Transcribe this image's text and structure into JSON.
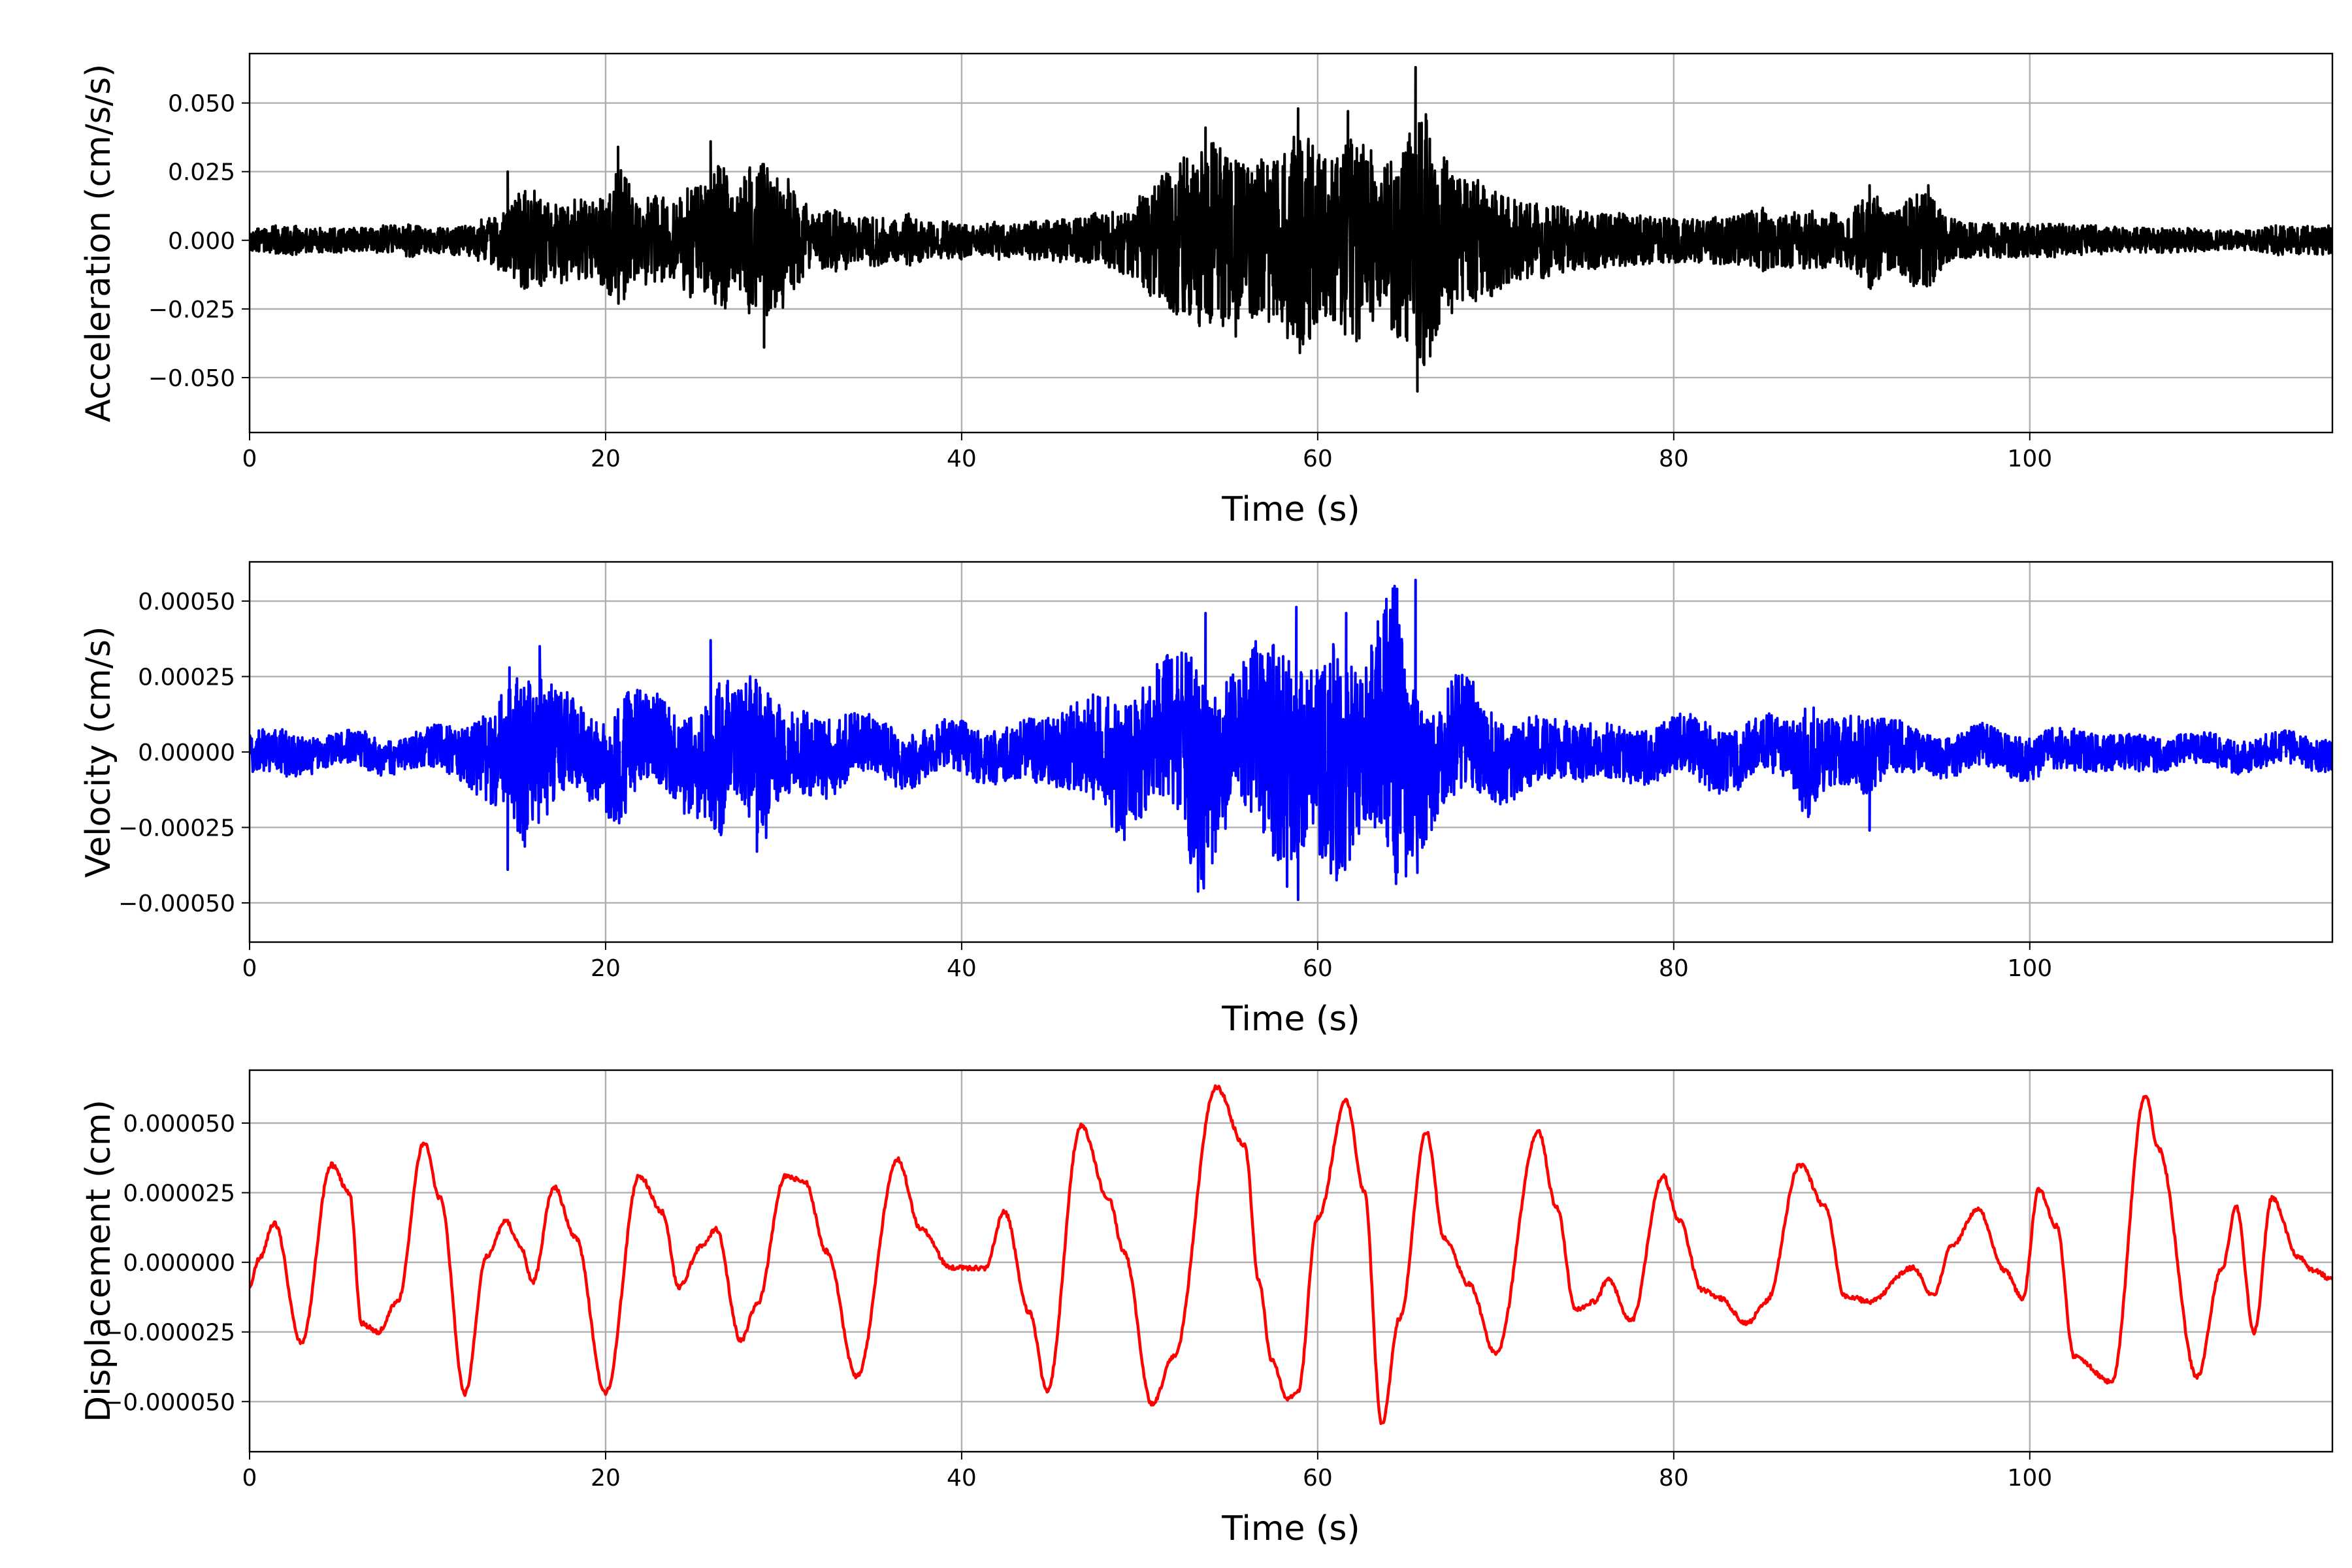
{
  "chart_data": [
    {
      "type": "line",
      "xlabel": "Time (s)",
      "ylabel": "Acceleration (cm/s/s)",
      "xlim": [
        0,
        117
      ],
      "ylim": [
        -0.07,
        0.068
      ],
      "x_ticks": [
        0,
        20,
        40,
        60,
        80,
        100
      ],
      "x_tick_labels": [
        "0",
        "20",
        "40",
        "60",
        "80",
        "100"
      ],
      "y_ticks": [
        0.05,
        0.025,
        0.0,
        -0.025,
        -0.05
      ],
      "y_tick_labels": [
        "0.050",
        "0.025",
        "0.000",
        "−0.025",
        "−0.050"
      ],
      "grid": true,
      "series": [
        {
          "color": "#000000",
          "sample_interval_s": 0.5,
          "peaks": [
            {
              "t": 14.5,
              "v": 0.025
            },
            {
              "t": 20.7,
              "v": 0.034
            },
            {
              "t": 25.9,
              "v": 0.036
            },
            {
              "t": 28.9,
              "v": -0.039
            },
            {
              "t": 53.7,
              "v": 0.041
            },
            {
              "t": 55.4,
              "v": -0.035
            },
            {
              "t": 58.9,
              "v": 0.048
            },
            {
              "t": 59.0,
              "v": -0.041
            },
            {
              "t": 61.7,
              "v": 0.047
            },
            {
              "t": 65.5,
              "v": 0.063
            },
            {
              "t": 65.6,
              "v": -0.055
            },
            {
              "t": 91.0,
              "v": 0.02
            },
            {
              "t": 94.3,
              "v": 0.02
            }
          ],
          "envelope": [
            0.004,
            0.005,
            0.005,
            0.006,
            0.006,
            0.006,
            0.005,
            0.005,
            0.005,
            0.005,
            0.005,
            0.005,
            0.005,
            0.005,
            0.005,
            0.006,
            0.006,
            0.006,
            0.007,
            0.006,
            0.005,
            0.006,
            0.005,
            0.006,
            0.006,
            0.007,
            0.009,
            0.01,
            0.012,
            0.013,
            0.019,
            0.021,
            0.02,
            0.019,
            0.014,
            0.018,
            0.016,
            0.017,
            0.015,
            0.016,
            0.02,
            0.028,
            0.03,
            0.019,
            0.017,
            0.02,
            0.017,
            0.018,
            0.014,
            0.023,
            0.025,
            0.021,
            0.027,
            0.032,
            0.022,
            0.02,
            0.03,
            0.028,
            0.033,
            0.029,
            0.028,
            0.023,
            0.016,
            0.014,
            0.011,
            0.012,
            0.013,
            0.012,
            0.009,
            0.009,
            0.011,
            0.01,
            0.009,
            0.008,
            0.011,
            0.009,
            0.008,
            0.007,
            0.008,
            0.007,
            0.008,
            0.006,
            0.006,
            0.007,
            0.008,
            0.007,
            0.007,
            0.007,
            0.008,
            0.008,
            0.008,
            0.009,
            0.008,
            0.009,
            0.009,
            0.011,
            0.01,
            0.012,
            0.014,
            0.014,
            0.02,
            0.022,
            0.024,
            0.028,
            0.03,
            0.034,
            0.032,
            0.036,
            0.04,
            0.038,
            0.034,
            0.034,
            0.03,
            0.032,
            0.034,
            0.036,
            0.038,
            0.042,
            0.045,
            0.042,
            0.036,
            0.033,
            0.035,
            0.039,
            0.042,
            0.04,
            0.037,
            0.03,
            0.036,
            0.04,
            0.044,
            0.048,
            0.052,
            0.046,
            0.037,
            0.03,
            0.026,
            0.024,
            0.025,
            0.024,
            0.023,
            0.02,
            0.017,
            0.016,
            0.016,
            0.016,
            0.015,
            0.014,
            0.013,
            0.012,
            0.012,
            0.012,
            0.012,
            0.011,
            0.011,
            0.01,
            0.01,
            0.01,
            0.009,
            0.009,
            0.009,
            0.009,
            0.009,
            0.009,
            0.009,
            0.01,
            0.01,
            0.01,
            0.011,
            0.013,
            0.014,
            0.012,
            0.011,
            0.012,
            0.012,
            0.012,
            0.012,
            0.011,
            0.011,
            0.011,
            0.012,
            0.016,
            0.02,
            0.018,
            0.013,
            0.012,
            0.015,
            0.019,
            0.02,
            0.018,
            0.012,
            0.009,
            0.008,
            0.007,
            0.007,
            0.007,
            0.007,
            0.007,
            0.007,
            0.007,
            0.007,
            0.007,
            0.007,
            0.007,
            0.007,
            0.006,
            0.006,
            0.006,
            0.006,
            0.006,
            0.005,
            0.005,
            0.005,
            0.005,
            0.005,
            0.005,
            0.005,
            0.005,
            0.005,
            0.005,
            0.004,
            0.004,
            0.004,
            0.004,
            0.004,
            0.004,
            0.005,
            0.006,
            0.006
          ]
        }
      ]
    },
    {
      "type": "line",
      "xlabel": "Time (s)",
      "ylabel": "Velocity (cm/s)",
      "xlim": [
        0,
        117
      ],
      "ylim": [
        -0.00063,
        0.00063
      ],
      "x_ticks": [
        0,
        20,
        40,
        60,
        80,
        100
      ],
      "x_tick_labels": [
        "0",
        "20",
        "40",
        "60",
        "80",
        "100"
      ],
      "y_ticks": [
        0.0005,
        0.00025,
        0.0,
        -0.00025,
        -0.0005
      ],
      "y_tick_labels": [
        "0.00050",
        "0.00025",
        "0.00000",
        "−0.00025",
        "−0.00050"
      ],
      "grid": true,
      "series": [
        {
          "color": "#0000ff",
          "sample_interval_s": 0.5,
          "peaks": [
            {
              "t": 14.5,
              "v": -0.00039
            },
            {
              "t": 14.6,
              "v": 0.00028
            },
            {
              "t": 16.3,
              "v": 0.00035
            },
            {
              "t": 25.9,
              "v": 0.00037
            },
            {
              "t": 28.5,
              "v": -0.00033
            },
            {
              "t": 53.7,
              "v": 0.00046
            },
            {
              "t": 58.8,
              "v": 0.00048
            },
            {
              "t": 58.9,
              "v": -0.00049
            },
            {
              "t": 61.6,
              "v": 0.00046
            },
            {
              "t": 65.5,
              "v": 0.00057
            },
            {
              "t": 65.6,
              "v": -0.0004
            },
            {
              "t": 91.0,
              "v": -0.00026
            }
          ],
          "envelope": [
            8e-05,
            8e-05,
            8e-05,
            8e-05,
            9e-05,
            8e-05,
            7e-05,
            7e-05,
            6e-05,
            6e-05,
            6e-05,
            6e-05,
            6e-05,
            7e-05,
            7e-05,
            7e-05,
            6e-05,
            6e-05,
            6e-05,
            7e-05,
            8e-05,
            8e-05,
            9e-05,
            9e-05,
            0.0001,
            0.00012,
            0.00015,
            0.00018,
            0.0002,
            0.00022,
            0.00029,
            0.00035,
            0.00025,
            0.0003,
            0.00022,
            0.0002,
            0.00018,
            0.00016,
            0.00018,
            0.00015,
            0.00018,
            0.0002,
            0.00024,
            0.0002,
            0.00018,
            0.00016,
            0.00017,
            0.00016,
            0.00015,
            0.00018,
            0.0002,
            0.0002,
            0.0003,
            0.00037,
            0.0002,
            0.0002,
            0.00026,
            0.0003,
            0.00033,
            0.0002,
            0.00017,
            0.00015,
            0.00016,
            0.00015,
            0.00014,
            0.00015,
            0.00014,
            0.00013,
            0.00012,
            0.00012,
            0.00011,
            0.00011,
            0.00011,
            0.0001,
            0.0001,
            0.0001,
            9e-05,
            9e-05,
            9e-05,
            9e-05,
            0.0001,
            0.0001,
            0.0001,
            0.0001,
            0.0001,
            0.0001,
            0.0001,
            0.00011,
            0.00012,
            0.00012,
            0.00013,
            0.00014,
            0.00015,
            0.00017,
            0.00018,
            0.0002,
            0.00022,
            0.00025,
            0.00026,
            0.00024,
            0.00025,
            0.00023,
            0.00025,
            0.00026,
            0.0003,
            0.00035,
            0.00044,
            0.0004,
            0.00034,
            0.0003,
            0.00028,
            0.00026,
            0.00028,
            0.00033,
            0.00035,
            0.0004,
            0.00046,
            0.00048,
            0.00036,
            0.00032,
            0.00036,
            0.00042,
            0.00044,
            0.0004,
            0.00035,
            0.00028,
            0.00034,
            0.0004,
            0.0005,
            0.00057,
            0.0004,
            0.0003,
            0.00025,
            0.00022,
            0.0002,
            0.00022,
            0.00022,
            0.0002,
            0.00019,
            0.00018,
            0.00016,
            0.00015,
            0.00014,
            0.00013,
            0.00013,
            0.00012,
            0.00012,
            0.00012,
            0.00011,
            0.00011,
            0.00011,
            0.0001,
            0.0001,
            0.0001,
            0.0001,
            0.0001,
            0.0001,
            0.0001,
            0.0001,
            0.0001,
            0.0001,
            0.00011,
            0.00011,
            0.00012,
            0.00012,
            0.00012,
            0.00012,
            0.00012,
            0.00011,
            0.00011,
            0.00011,
            0.00011,
            0.00011,
            0.00011,
            0.00016,
            0.00026,
            0.00018,
            0.00013,
            0.00012,
            0.00013,
            0.00014,
            0.00015,
            0.00016,
            0.00013,
            0.00011,
            0.0001,
            9e-05,
            9e-05,
            8e-05,
            8e-05,
            8e-05,
            8e-05,
            8e-05,
            8e-05,
            8e-05,
            8e-05,
            8e-05,
            8e-05,
            8e-05,
            8e-05,
            8e-05,
            8e-05,
            8e-05,
            8e-05,
            8e-05,
            8e-05,
            8e-05,
            7e-05,
            7e-05,
            7e-05,
            7e-05,
            7e-05,
            7e-05,
            7e-05,
            7e-05,
            6e-05,
            6e-05,
            6e-05,
            6e-05,
            6e-05,
            6e-05,
            6e-05,
            6e-05
          ]
        }
      ]
    },
    {
      "type": "line",
      "xlabel": "Time (s)",
      "ylabel": "Displacement (cm)",
      "xlim": [
        0,
        117
      ],
      "ylim": [
        -6.8e-05,
        6.9e-05
      ],
      "x_ticks": [
        0,
        20,
        40,
        60,
        80,
        100
      ],
      "x_tick_labels": [
        "0",
        "20",
        "40",
        "60",
        "80",
        "100"
      ],
      "y_ticks": [
        5e-05,
        2.5e-05,
        0.0,
        -2.5e-05,
        -5e-05
      ],
      "y_tick_labels": [
        "0.000050",
        "0.000025",
        "0.000000",
        "−0.000025",
        "−0.000050"
      ],
      "grid": true,
      "series": [
        {
          "color": "#ff0000",
          "x": [
            0,
            0.5,
            1.4,
            2.9,
            4.6,
            5.6,
            6.3,
            7.2,
            8.3,
            9.8,
            10.7,
            12.1,
            13.3,
            14.4,
            15.2,
            15.9,
            17.1,
            18.3,
            20.0,
            21.9,
            23.2,
            24.1,
            25.4,
            26.2,
            27.6,
            28.5,
            30.1,
            31.2,
            32.4,
            34.1,
            36.4,
            37.7,
            39.4,
            41.3,
            42.4,
            43.8,
            44.8,
            46.7,
            48.3,
            49.1,
            50.7,
            51.9,
            54.3,
            55.9,
            56.7,
            57.4,
            58.3,
            58.9,
            60.0,
            61.6,
            62.6,
            63.6,
            64.6,
            66.1,
            67.1,
            68.5,
            70.0,
            72.4,
            73.4,
            74.5,
            75.6,
            76.3,
            77.6,
            79.4,
            80.3,
            81.6,
            82.6,
            84.1,
            85.2,
            87.1,
            88.5,
            89.6,
            91.0,
            93.4,
            94.6,
            95.6,
            97.1,
            98.6,
            99.6,
            100.5,
            101.5,
            102.5,
            104.6,
            106.5,
            107.2,
            109.4,
            110.8,
            111.6,
            112.6,
            113.6,
            115.1,
            115.9,
            117.0
          ],
          "y": [
            -9e-06,
            1e-06,
            1.4e-05,
            -2.9e-05,
            3.5e-05,
            2.5e-05,
            -2.2e-05,
            -2.5e-05,
            -1.4e-05,
            4.3e-05,
            2.3e-05,
            -4.7e-05,
            2e-06,
            1.5e-05,
            6e-06,
            -7e-06,
            2.7e-05,
            9e-06,
            -4.7e-05,
            3.1e-05,
            1.8e-05,
            -9e-06,
            6e-06,
            1.2e-05,
            -2.8e-05,
            -1.5e-05,
            3.1e-05,
            2.9e-05,
            4e-06,
            -4.1e-05,
            3.7e-05,
            1.2e-05,
            -2e-06,
            -2e-06,
            1.8e-05,
            -1.8e-05,
            -4.6e-05,
            4.9e-05,
            2.2e-05,
            4e-06,
            -5.1e-05,
            -3.4e-05,
            6.3e-05,
            4.2e-05,
            -7e-06,
            -3.5e-05,
            -4.9e-05,
            -4.6e-05,
            1.6e-05,
            5.8e-05,
            2.6e-05,
            -5.8e-05,
            -2e-05,
            4.7e-05,
            9e-06,
            -8e-06,
            -3.3e-05,
            4.7e-05,
            2e-05,
            -1.7e-05,
            -1.4e-05,
            -6e-06,
            -2.1e-05,
            3.1e-05,
            1.5e-05,
            -1e-05,
            -1.3e-05,
            -2.2e-05,
            -1.4e-05,
            3.5e-05,
            2e-05,
            -1.2e-05,
            -1.4e-05,
            -2e-06,
            -1.2e-05,
            6e-06,
            1.9e-05,
            -3e-06,
            -1.3e-05,
            2.6e-05,
            1.3e-05,
            -3.4e-05,
            -4.3e-05,
            6e-05,
            4.1e-05,
            -4.1e-05,
            -2e-06,
            2e-05,
            -2.5e-05,
            2.3e-05,
            2e-06,
            -3e-06,
            -6e-06
          ]
        }
      ]
    }
  ]
}
